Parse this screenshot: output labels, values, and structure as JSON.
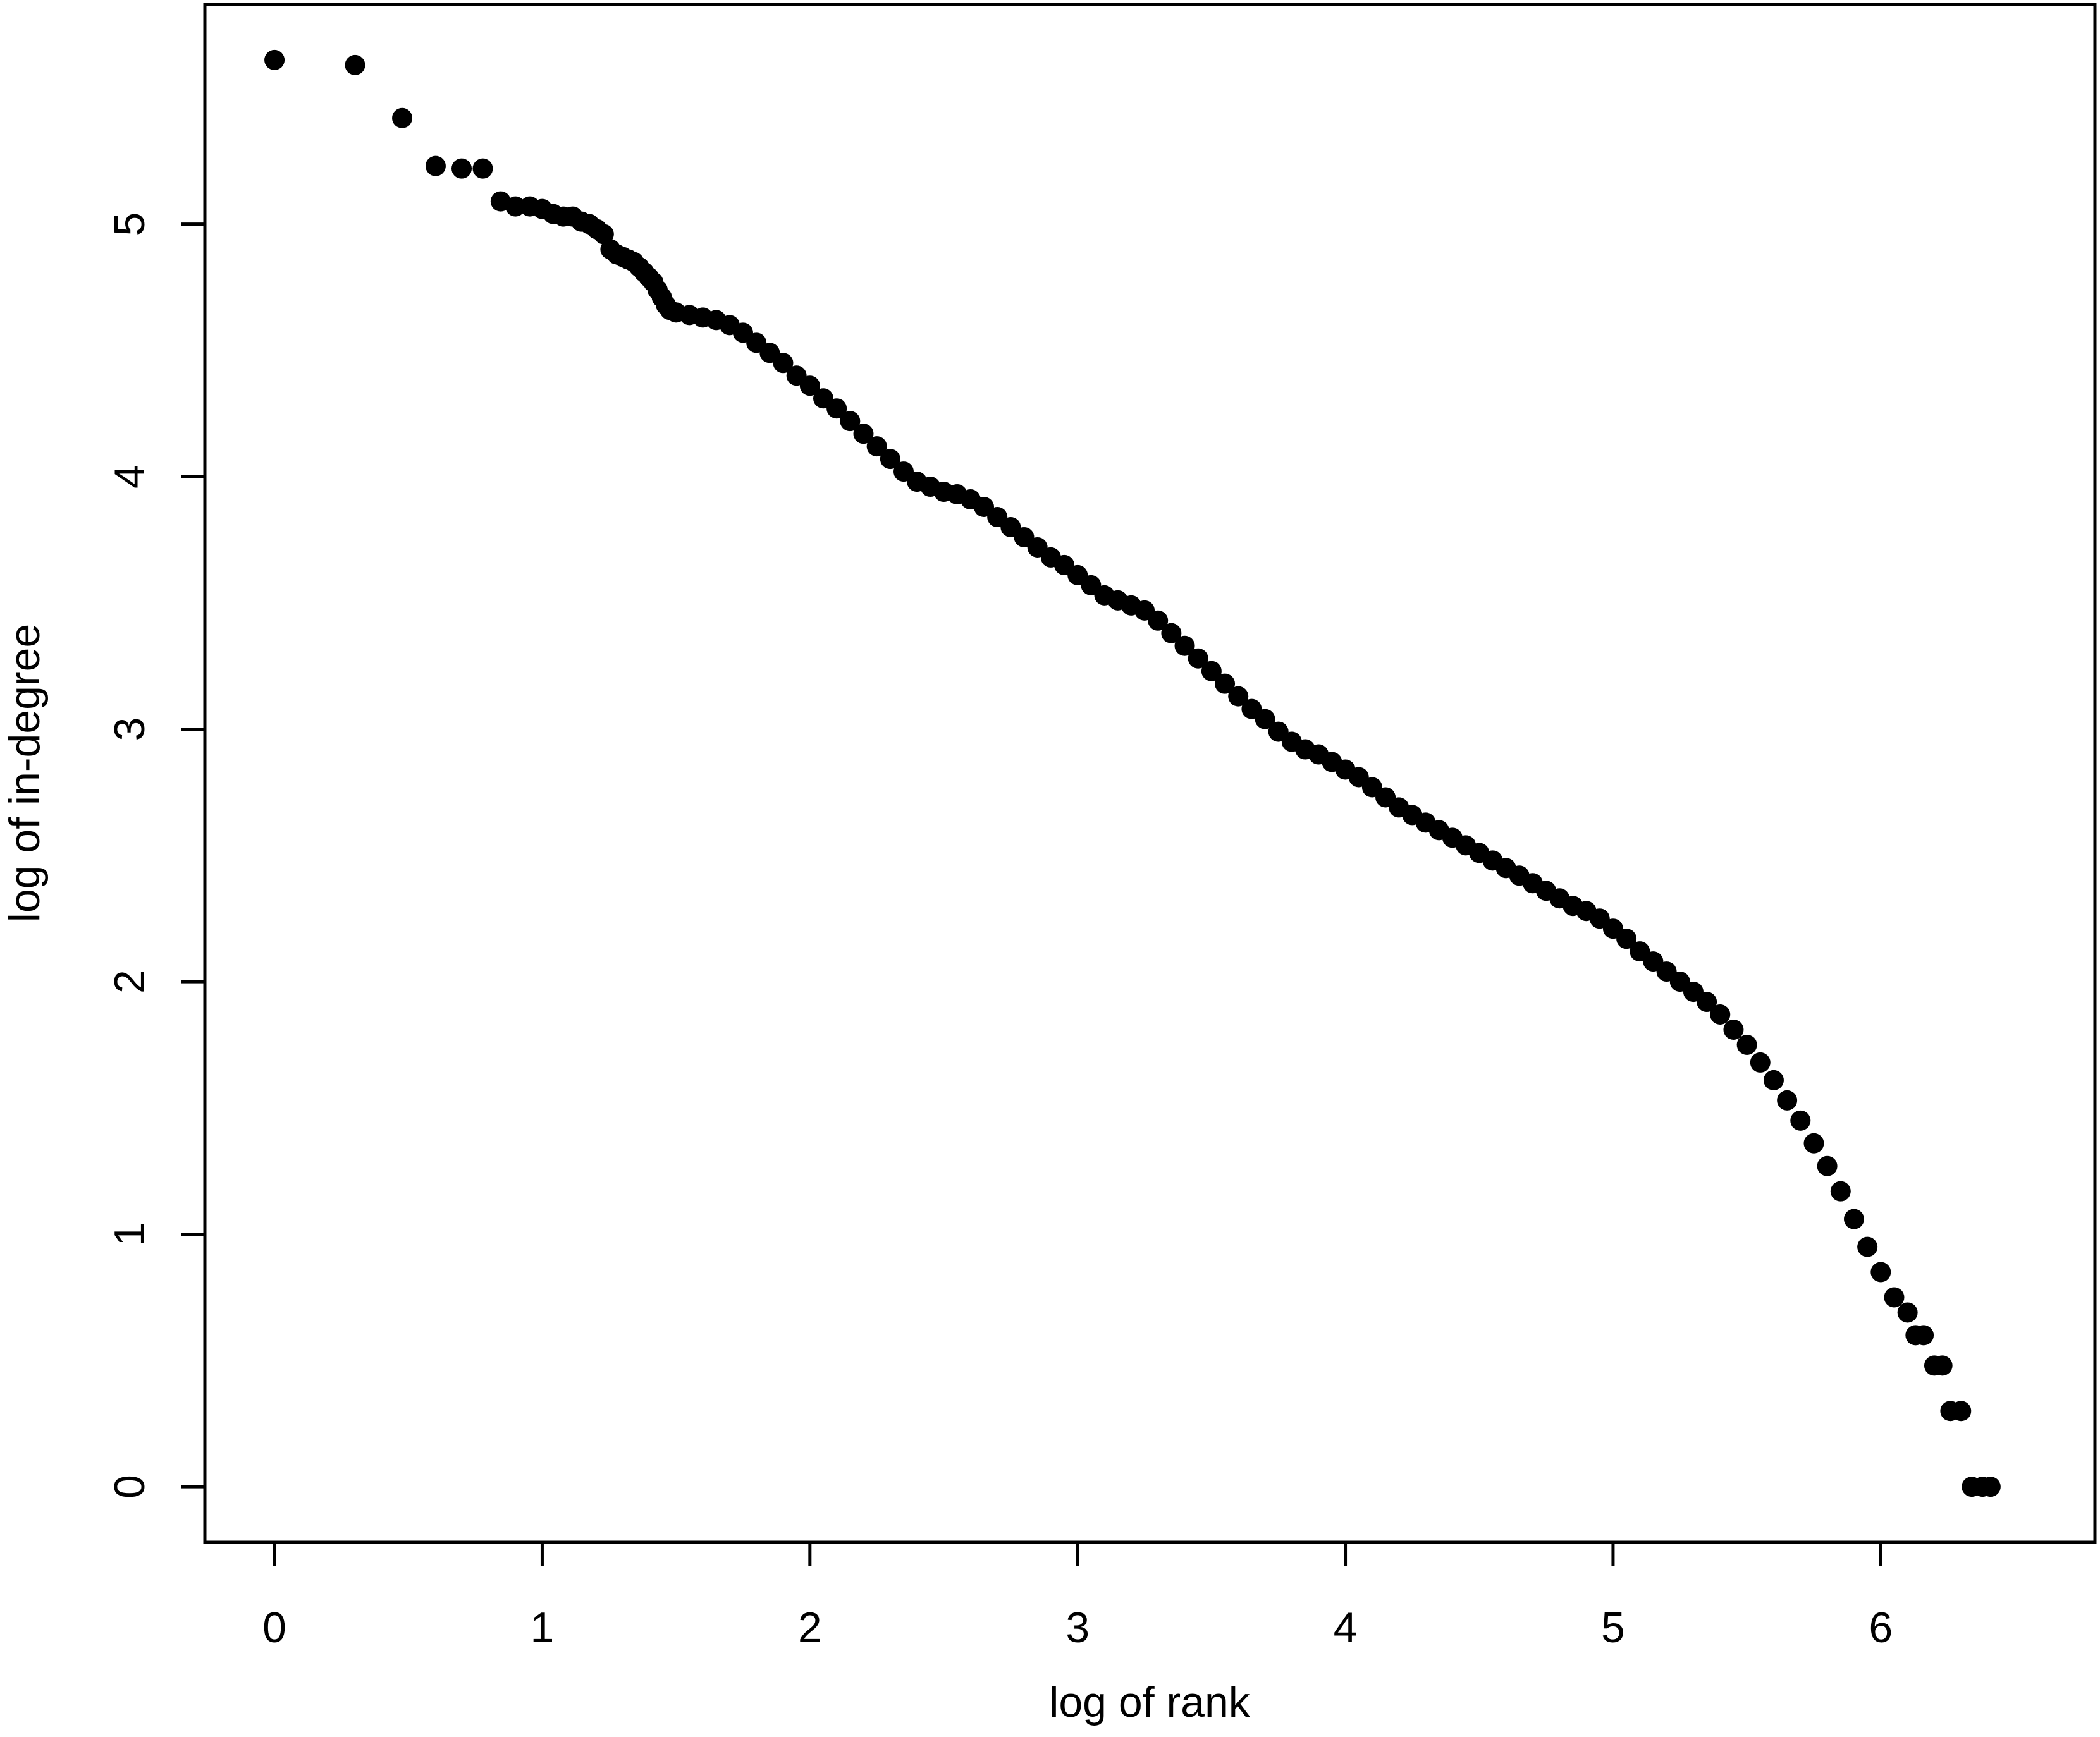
{
  "chart_data": {
    "type": "scatter",
    "title": "",
    "xlabel": "log of rank",
    "ylabel": "log of in-degree",
    "xlim": [
      -0.26,
      6.8
    ],
    "ylim": [
      -0.22,
      5.87
    ],
    "x_ticks": [
      "0",
      "1",
      "2",
      "3",
      "4",
      "5",
      "6"
    ],
    "y_ticks": [
      "0",
      "1",
      "2",
      "3",
      "4",
      "5"
    ],
    "grid": false,
    "legend": "none",
    "point_color": "#000000",
    "series": [
      {
        "points": [
          [
            0,
            5.65
          ],
          [
            0.301,
            5.63
          ],
          [
            0.477,
            5.42
          ],
          [
            0.602,
            5.23
          ],
          [
            0.699,
            5.22
          ],
          [
            0.778,
            5.22
          ],
          [
            0.845,
            5.09
          ],
          [
            0.9,
            5.07
          ],
          [
            0.954,
            5.07
          ],
          [
            1.0,
            5.06
          ],
          [
            1.041,
            5.04
          ],
          [
            1.079,
            5.03
          ],
          [
            1.114,
            5.03
          ],
          [
            1.146,
            5.01
          ],
          [
            1.176,
            5.0
          ],
          [
            1.204,
            4.98
          ],
          [
            1.23,
            4.96
          ],
          [
            1.255,
            4.9
          ],
          [
            1.279,
            4.88
          ],
          [
            1.301,
            4.87
          ],
          [
            1.322,
            4.86
          ],
          [
            1.342,
            4.85
          ],
          [
            1.362,
            4.83
          ],
          [
            1.38,
            4.81
          ],
          [
            1.398,
            4.79
          ],
          [
            1.415,
            4.77
          ],
          [
            1.431,
            4.74
          ],
          [
            1.447,
            4.71
          ],
          [
            1.462,
            4.68
          ],
          [
            1.477,
            4.66
          ],
          [
            1.5,
            4.65
          ],
          [
            1.55,
            4.64
          ],
          [
            1.6,
            4.63
          ],
          [
            1.65,
            4.62
          ],
          [
            1.7,
            4.6
          ],
          [
            1.75,
            4.57
          ],
          [
            1.8,
            4.53
          ],
          [
            1.85,
            4.49
          ],
          [
            1.9,
            4.45
          ],
          [
            1.95,
            4.4
          ],
          [
            2.0,
            4.36
          ],
          [
            2.05,
            4.31
          ],
          [
            2.1,
            4.27
          ],
          [
            2.15,
            4.22
          ],
          [
            2.2,
            4.17
          ],
          [
            2.25,
            4.12
          ],
          [
            2.3,
            4.07
          ],
          [
            2.35,
            4.02
          ],
          [
            2.4,
            3.98
          ],
          [
            2.45,
            3.96
          ],
          [
            2.5,
            3.94
          ],
          [
            2.55,
            3.93
          ],
          [
            2.6,
            3.91
          ],
          [
            2.65,
            3.88
          ],
          [
            2.7,
            3.84
          ],
          [
            2.75,
            3.8
          ],
          [
            2.8,
            3.76
          ],
          [
            2.85,
            3.72
          ],
          [
            2.9,
            3.68
          ],
          [
            2.95,
            3.65
          ],
          [
            3.0,
            3.61
          ],
          [
            3.05,
            3.57
          ],
          [
            3.1,
            3.53
          ],
          [
            3.15,
            3.51
          ],
          [
            3.2,
            3.49
          ],
          [
            3.25,
            3.47
          ],
          [
            3.3,
            3.43
          ],
          [
            3.35,
            3.38
          ],
          [
            3.4,
            3.33
          ],
          [
            3.45,
            3.28
          ],
          [
            3.5,
            3.23
          ],
          [
            3.55,
            3.18
          ],
          [
            3.6,
            3.13
          ],
          [
            3.65,
            3.08
          ],
          [
            3.7,
            3.04
          ],
          [
            3.75,
            2.99
          ],
          [
            3.8,
            2.95
          ],
          [
            3.85,
            2.92
          ],
          [
            3.9,
            2.9
          ],
          [
            3.95,
            2.87
          ],
          [
            4.0,
            2.84
          ],
          [
            4.05,
            2.81
          ],
          [
            4.1,
            2.77
          ],
          [
            4.15,
            2.73
          ],
          [
            4.2,
            2.69
          ],
          [
            4.25,
            2.66
          ],
          [
            4.3,
            2.63
          ],
          [
            4.35,
            2.6
          ],
          [
            4.4,
            2.57
          ],
          [
            4.45,
            2.54
          ],
          [
            4.5,
            2.51
          ],
          [
            4.55,
            2.48
          ],
          [
            4.6,
            2.45
          ],
          [
            4.65,
            2.42
          ],
          [
            4.7,
            2.39
          ],
          [
            4.75,
            2.36
          ],
          [
            4.8,
            2.33
          ],
          [
            4.85,
            2.3
          ],
          [
            4.9,
            2.28
          ],
          [
            4.95,
            2.25
          ],
          [
            5.0,
            2.21
          ],
          [
            5.05,
            2.17
          ],
          [
            5.1,
            2.12
          ],
          [
            5.15,
            2.08
          ],
          [
            5.2,
            2.04
          ],
          [
            5.25,
            2.0
          ],
          [
            5.3,
            1.96
          ],
          [
            5.35,
            1.92
          ],
          [
            5.4,
            1.87
          ],
          [
            5.45,
            1.81
          ],
          [
            5.5,
            1.75
          ],
          [
            5.55,
            1.68
          ],
          [
            5.6,
            1.61
          ],
          [
            5.65,
            1.53
          ],
          [
            5.7,
            1.45
          ],
          [
            5.75,
            1.36
          ],
          [
            5.8,
            1.27
          ],
          [
            5.85,
            1.17
          ],
          [
            5.9,
            1.06
          ],
          [
            5.95,
            0.95
          ],
          [
            6.0,
            0.85
          ],
          [
            6.05,
            0.75
          ],
          [
            6.1,
            0.69
          ],
          [
            6.13,
            0.6
          ],
          [
            6.16,
            0.6
          ],
          [
            6.2,
            0.48
          ],
          [
            6.23,
            0.48
          ],
          [
            6.26,
            0.3
          ],
          [
            6.3,
            0.3
          ],
          [
            6.34,
            0.0
          ],
          [
            6.38,
            0.0
          ],
          [
            6.41,
            0.0
          ]
        ]
      }
    ]
  }
}
